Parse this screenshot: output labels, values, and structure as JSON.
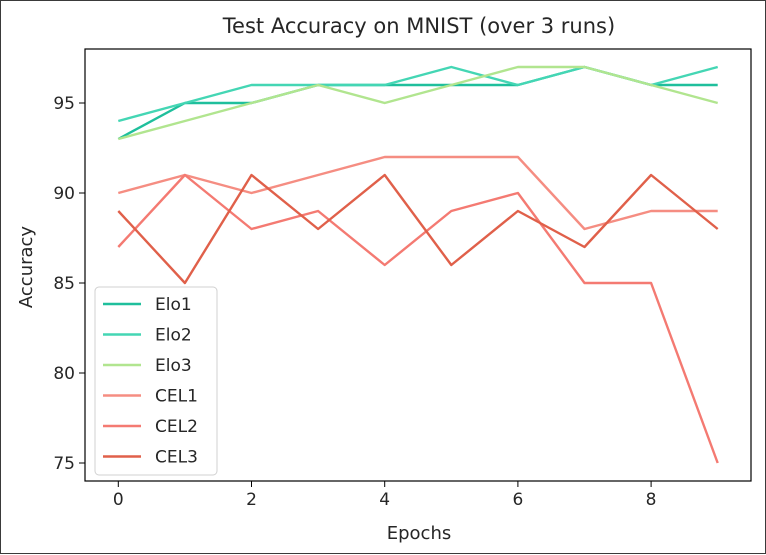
{
  "chart_data": {
    "type": "line",
    "title": "Test Accuracy on MNIST (over 3 runs)",
    "xlabel": "Epochs",
    "ylabel": "Accuracy",
    "xlim": [
      -0.5,
      9.5
    ],
    "ylim": [
      74,
      98
    ],
    "xticks": [
      0,
      2,
      4,
      6,
      8
    ],
    "yticks": [
      75,
      80,
      85,
      90,
      95
    ],
    "grid": false,
    "legend": "bottom-left",
    "x": [
      0,
      1,
      2,
      3,
      4,
      5,
      6,
      7,
      8,
      9
    ],
    "series": [
      {
        "name": "Elo1",
        "color": "#1fbf9c",
        "values": [
          93,
          95,
          95,
          96,
          96,
          96,
          96,
          97,
          96,
          96
        ]
      },
      {
        "name": "Elo2",
        "color": "#44d6b4",
        "values": [
          94,
          95,
          96,
          96,
          96,
          97,
          96,
          97,
          96,
          97
        ]
      },
      {
        "name": "Elo3",
        "color": "#b1e58f",
        "values": [
          93,
          94,
          95,
          96,
          95,
          96,
          97,
          97,
          96,
          95
        ]
      },
      {
        "name": "CEL1",
        "color": "#f58d82",
        "values": [
          90,
          91,
          90,
          91,
          92,
          92,
          92,
          88,
          89,
          89
        ]
      },
      {
        "name": "CEL2",
        "color": "#f47a72",
        "values": [
          87,
          91,
          88,
          89,
          86,
          89,
          90,
          85,
          85,
          75
        ]
      },
      {
        "name": "CEL3",
        "color": "#e0604a",
        "values": [
          89,
          85,
          91,
          88,
          91,
          86,
          89,
          87,
          91,
          88
        ]
      }
    ]
  }
}
